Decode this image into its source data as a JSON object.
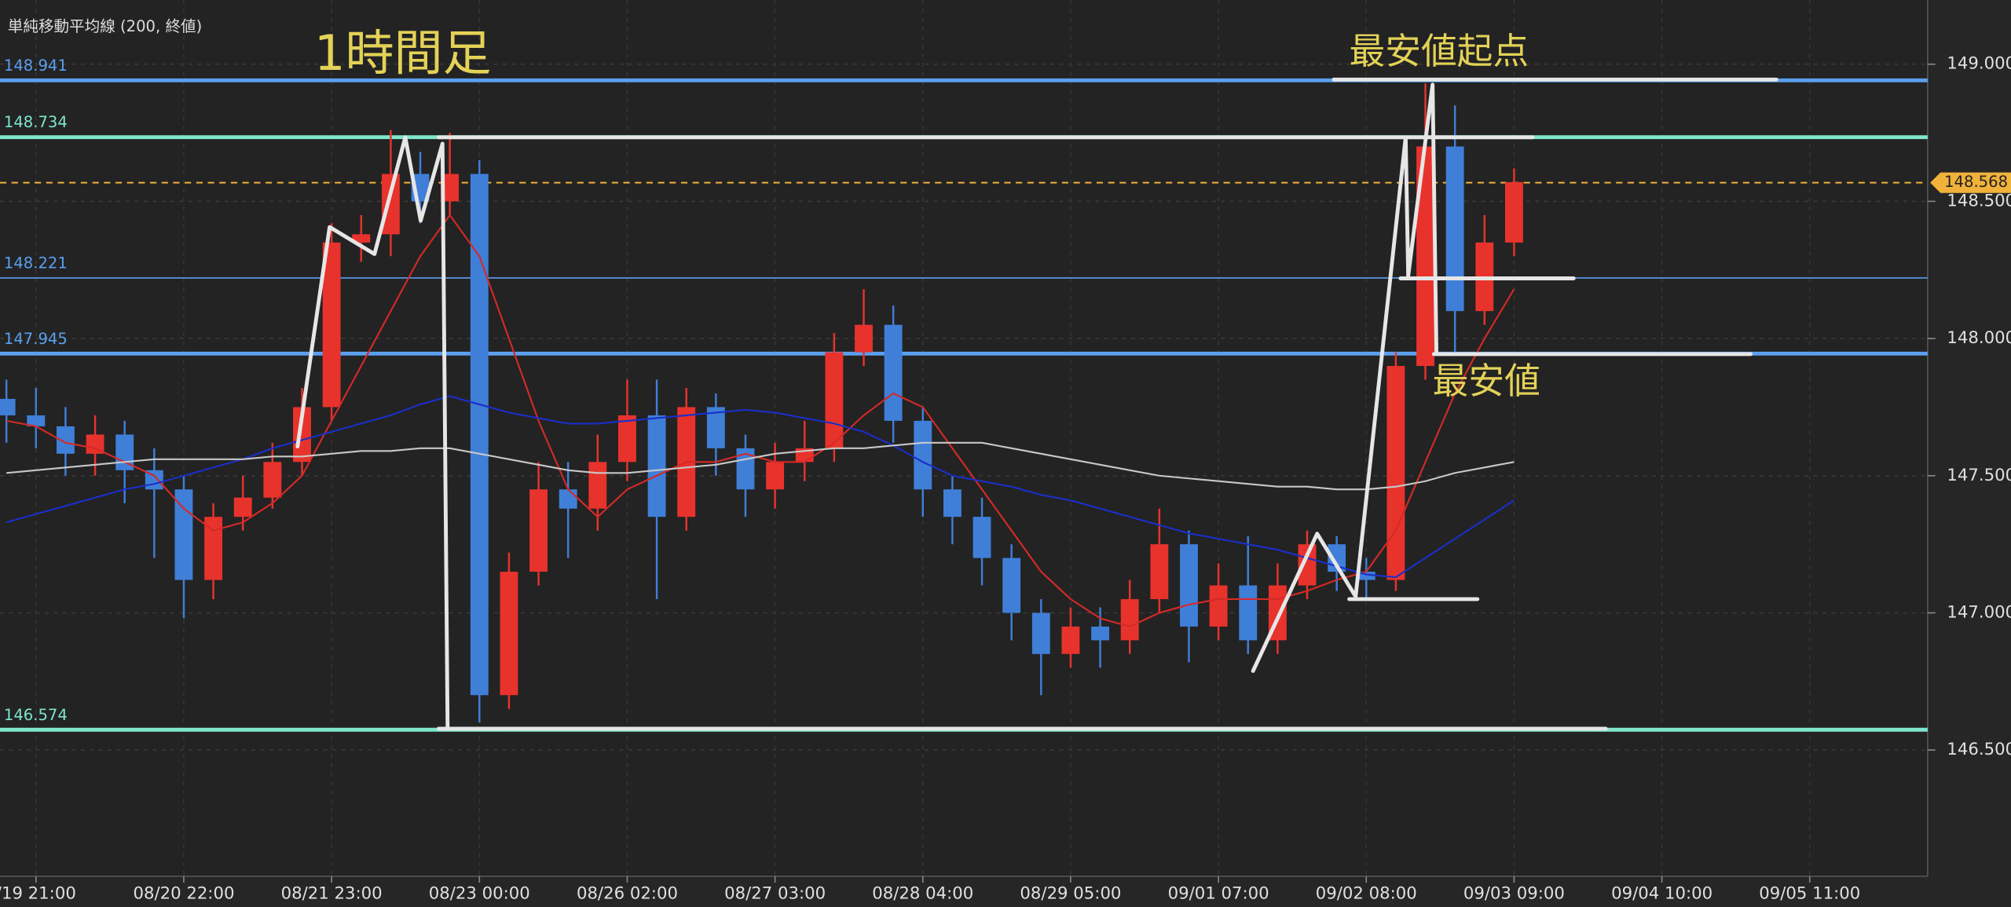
{
  "chart_data": {
    "type": "candlestick",
    "categories": [
      null,
      "/19 21:00",
      null,
      null,
      null,
      null,
      "08/20 22:00",
      null,
      null,
      null,
      null,
      "08/21 23:00",
      null,
      null,
      null,
      null,
      "08/23 00:00",
      null,
      null,
      null,
      null,
      "08/26 02:00",
      null,
      null,
      null,
      null,
      "08/27 03:00",
      null,
      null,
      null,
      null,
      "08/28 04:00",
      null,
      null,
      null,
      null,
      "08/29 05:00",
      null,
      null,
      null,
      null,
      "09/01 07:00",
      null,
      null,
      null,
      null,
      "09/02 08:00",
      null,
      null,
      null,
      null,
      "09/03 09:00",
      null,
      null,
      null,
      null,
      "09/04 10:00",
      null,
      null,
      null,
      null,
      "09/05 11:00"
    ],
    "open": [
      147.78,
      147.72,
      147.68,
      147.58,
      147.65,
      147.52,
      147.45,
      147.12,
      147.35,
      147.42,
      147.55,
      147.75,
      148.35,
      148.38,
      148.6,
      148.5,
      148.6,
      146.7,
      147.15,
      147.45,
      147.38,
      147.55,
      147.72,
      147.35,
      147.75,
      147.6,
      147.45,
      147.55,
      147.6,
      147.95,
      148.05,
      147.7,
      147.45,
      147.35,
      147.2,
      147.0,
      146.85,
      146.95,
      146.9,
      147.05,
      147.25,
      146.95,
      147.1,
      146.9,
      147.1,
      147.25,
      147.15,
      147.12,
      147.9,
      148.7,
      148.1,
      148.35,
      null,
      null,
      null,
      null,
      null,
      null,
      null,
      null,
      null,
      null
    ],
    "high": [
      147.85,
      147.82,
      147.75,
      147.72,
      147.7,
      147.6,
      147.5,
      147.4,
      147.5,
      147.62,
      147.82,
      148.42,
      148.45,
      148.76,
      148.68,
      148.75,
      148.65,
      147.22,
      147.55,
      147.55,
      147.65,
      147.85,
      147.85,
      147.82,
      147.8,
      147.65,
      147.62,
      147.7,
      148.02,
      148.18,
      148.12,
      147.75,
      147.5,
      147.42,
      147.25,
      147.05,
      147.02,
      147.02,
      147.12,
      147.38,
      147.3,
      147.18,
      147.28,
      147.18,
      147.3,
      147.28,
      147.2,
      147.95,
      148.93,
      148.85,
      148.45,
      148.62,
      null,
      null,
      null,
      null,
      null,
      null,
      null,
      null,
      null,
      null
    ],
    "low": [
      147.62,
      147.6,
      147.5,
      147.5,
      147.4,
      147.2,
      146.98,
      147.05,
      147.3,
      147.38,
      147.5,
      147.7,
      148.28,
      148.3,
      148.42,
      148.45,
      146.6,
      146.65,
      147.1,
      147.2,
      147.3,
      147.48,
      147.05,
      147.3,
      147.5,
      147.35,
      147.38,
      147.48,
      147.55,
      147.9,
      147.62,
      147.35,
      147.25,
      147.1,
      146.9,
      146.7,
      146.8,
      146.8,
      146.85,
      147.0,
      146.82,
      146.9,
      146.85,
      146.85,
      147.05,
      147.08,
      147.05,
      147.08,
      147.85,
      147.95,
      148.05,
      148.3,
      null,
      null,
      null,
      null,
      null,
      null,
      null,
      null,
      null,
      null
    ],
    "close": [
      147.72,
      147.68,
      147.58,
      147.65,
      147.52,
      147.45,
      147.12,
      147.35,
      147.42,
      147.55,
      147.75,
      148.35,
      148.38,
      148.6,
      148.5,
      148.6,
      146.7,
      147.15,
      147.45,
      147.38,
      147.55,
      147.72,
      147.35,
      147.75,
      147.6,
      147.45,
      147.55,
      147.6,
      147.95,
      148.05,
      147.7,
      147.45,
      147.35,
      147.2,
      147.0,
      146.85,
      146.95,
      146.9,
      147.05,
      147.25,
      146.95,
      147.1,
      146.9,
      147.1,
      147.25,
      147.15,
      147.12,
      147.9,
      148.7,
      148.1,
      148.35,
      148.57,
      null,
      null,
      null,
      null,
      null,
      null,
      null,
      null,
      null,
      null
    ],
    "up_color": "#e8332c",
    "down_color": "#3f7fd8",
    "series": [
      {
        "color": "#d42a26",
        "values": [
          147.7,
          147.68,
          147.62,
          147.6,
          147.55,
          147.5,
          147.38,
          147.3,
          147.33,
          147.4,
          147.5,
          147.7,
          147.9,
          148.1,
          148.3,
          148.45,
          148.3,
          148.0,
          147.7,
          147.45,
          147.35,
          147.45,
          147.5,
          147.55,
          147.55,
          147.58,
          147.55,
          147.55,
          147.62,
          147.72,
          147.8,
          147.75,
          147.6,
          147.45,
          147.3,
          147.15,
          147.05,
          146.98,
          146.95,
          147.0,
          147.03,
          147.05,
          147.05,
          147.05,
          147.08,
          147.12,
          147.15,
          147.3,
          147.55,
          147.8,
          148.0,
          148.18,
          null,
          null,
          null,
          null,
          null,
          null,
          null,
          null,
          null,
          null
        ]
      },
      {
        "color": "#1a2fc8",
        "values": [
          147.33,
          147.36,
          147.39,
          147.42,
          147.45,
          147.47,
          147.5,
          147.53,
          147.56,
          147.6,
          147.63,
          147.66,
          147.69,
          147.72,
          147.76,
          147.79,
          147.76,
          147.73,
          147.71,
          147.69,
          147.69,
          147.7,
          147.71,
          147.72,
          147.73,
          147.74,
          147.73,
          147.71,
          147.69,
          147.66,
          147.61,
          147.55,
          147.5,
          147.48,
          147.46,
          147.43,
          147.41,
          147.38,
          147.35,
          147.32,
          147.29,
          147.27,
          147.25,
          147.23,
          147.2,
          147.17,
          147.14,
          147.13,
          147.2,
          147.27,
          147.34,
          147.41,
          null,
          null,
          null,
          null,
          null,
          null,
          null,
          null,
          null,
          null
        ]
      },
      {
        "name": "単純移動平均線 (200, 終値)",
        "color": "#c8c8c8",
        "values": [
          147.51,
          147.52,
          147.53,
          147.54,
          147.55,
          147.56,
          147.56,
          147.56,
          147.56,
          147.57,
          147.57,
          147.58,
          147.59,
          147.59,
          147.6,
          147.6,
          147.58,
          147.56,
          147.54,
          147.52,
          147.51,
          147.51,
          147.52,
          147.53,
          147.54,
          147.56,
          147.58,
          147.59,
          147.6,
          147.6,
          147.61,
          147.62,
          147.62,
          147.62,
          147.6,
          147.58,
          147.56,
          147.54,
          147.52,
          147.5,
          147.49,
          147.48,
          147.47,
          147.46,
          147.46,
          147.45,
          147.45,
          147.46,
          147.48,
          147.51,
          147.53,
          147.55,
          null,
          null,
          null,
          null,
          null,
          null,
          null,
          null,
          null,
          null
        ]
      }
    ],
    "levels": [
      {
        "value": 148.941,
        "color": "#5b9ff0",
        "width": 3
      },
      {
        "value": 148.734,
        "color": "#7ee6cc",
        "width": 3
      },
      {
        "value": 148.221,
        "color": "#5b9ff0",
        "width": 1
      },
      {
        "value": 147.945,
        "color": "#5b9ff0",
        "width": 3
      },
      {
        "value": 146.574,
        "color": "#7ee6cc",
        "width": 3
      }
    ],
    "current_price": {
      "value": 148.568,
      "color": "#f0b23a"
    },
    "annotations": [
      "1時間足",
      "最安値起点",
      "最安値"
    ],
    "ylim": [
      146.04,
      149.234
    ],
    "yticks": [
      {
        "value": 146.5,
        "label": "146.500"
      },
      {
        "value": 147,
        "label": "147.000"
      },
      {
        "value": 147.5,
        "label": "147.500"
      },
      {
        "value": 148,
        "label": "148.000"
      },
      {
        "value": 148.5,
        "label": "148.500"
      },
      {
        "value": 149,
        "label": "149.000"
      }
    ],
    "grid": true
  }
}
